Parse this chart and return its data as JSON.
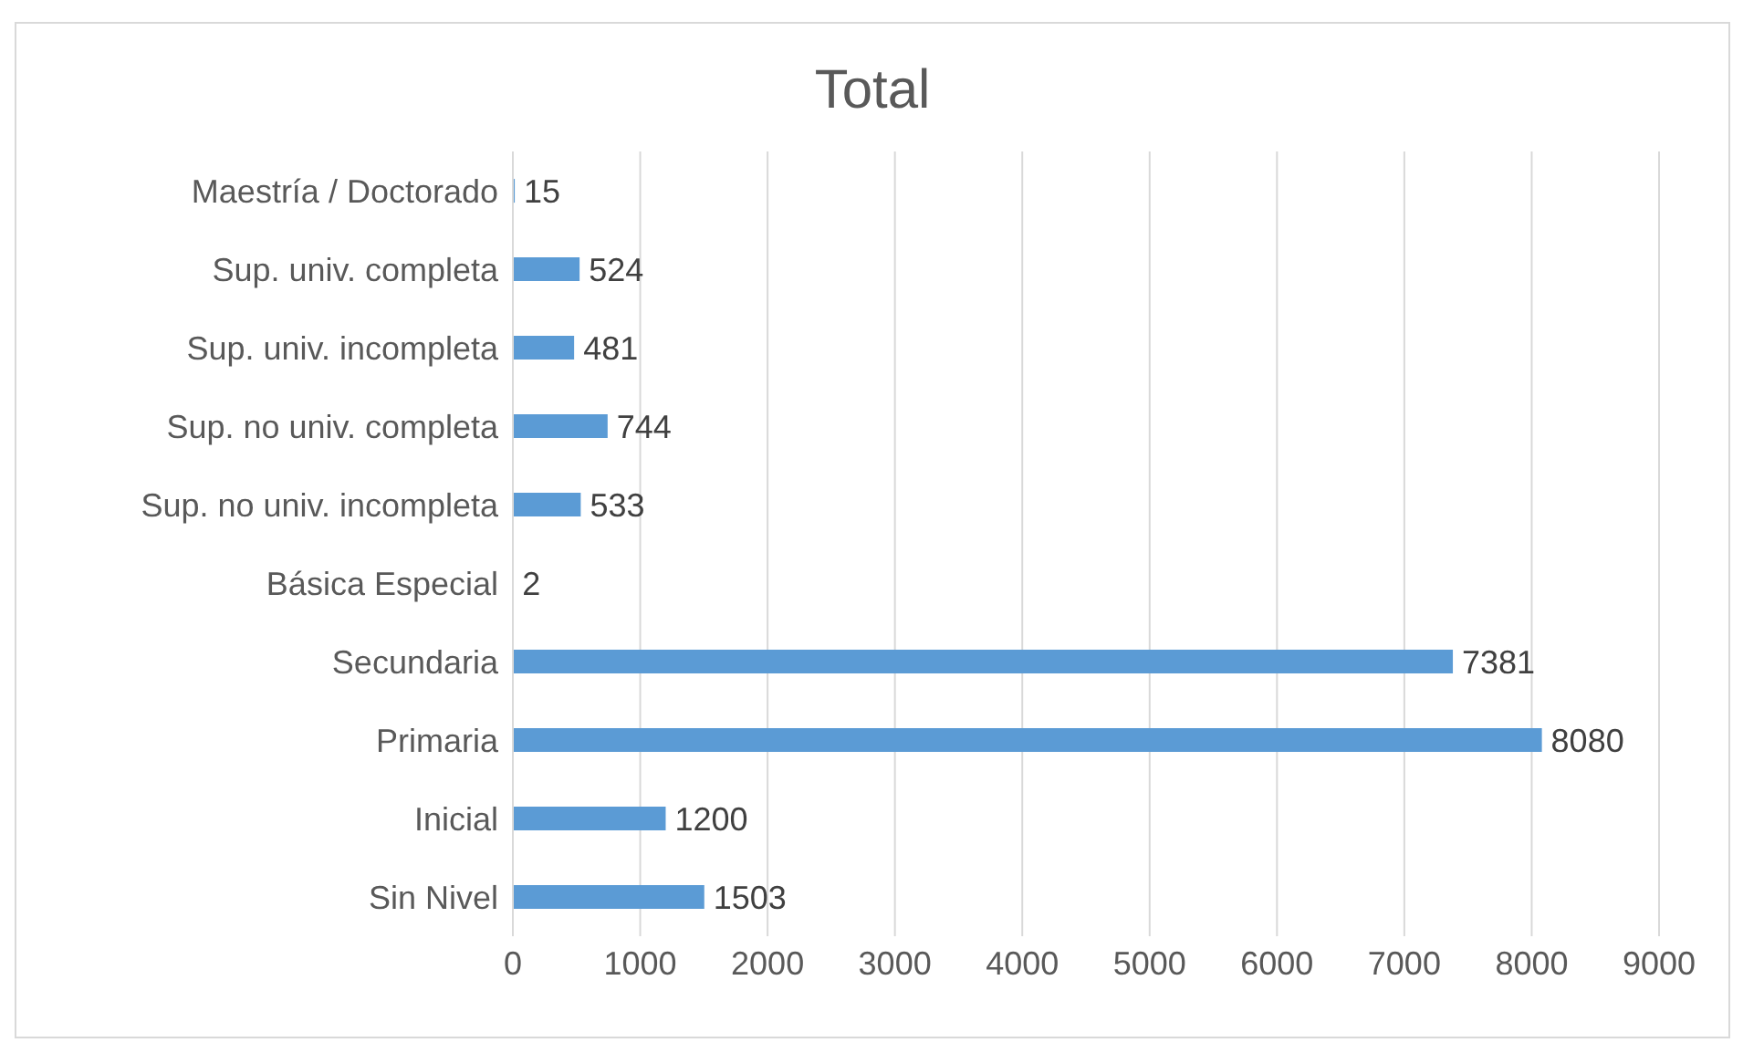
{
  "chart_data": {
    "type": "bar",
    "orientation": "horizontal",
    "title": "Total",
    "categories": [
      "Maestría / Doctorado",
      "Sup. univ. completa",
      "Sup. univ. incompleta",
      "Sup. no univ. completa",
      "Sup. no univ. incompleta",
      "Básica Especial",
      "Secundaria",
      "Primaria",
      "Inicial",
      "Sin Nivel"
    ],
    "values": [
      15,
      524,
      481,
      744,
      533,
      2,
      7381,
      8080,
      1200,
      1503
    ],
    "color": "#5b9bd5",
    "xlim": [
      0,
      9000
    ],
    "xticks": [
      0,
      1000,
      2000,
      3000,
      4000,
      5000,
      6000,
      7000,
      8000,
      9000
    ],
    "grid": "x",
    "data_labels": true,
    "legend": false
  }
}
